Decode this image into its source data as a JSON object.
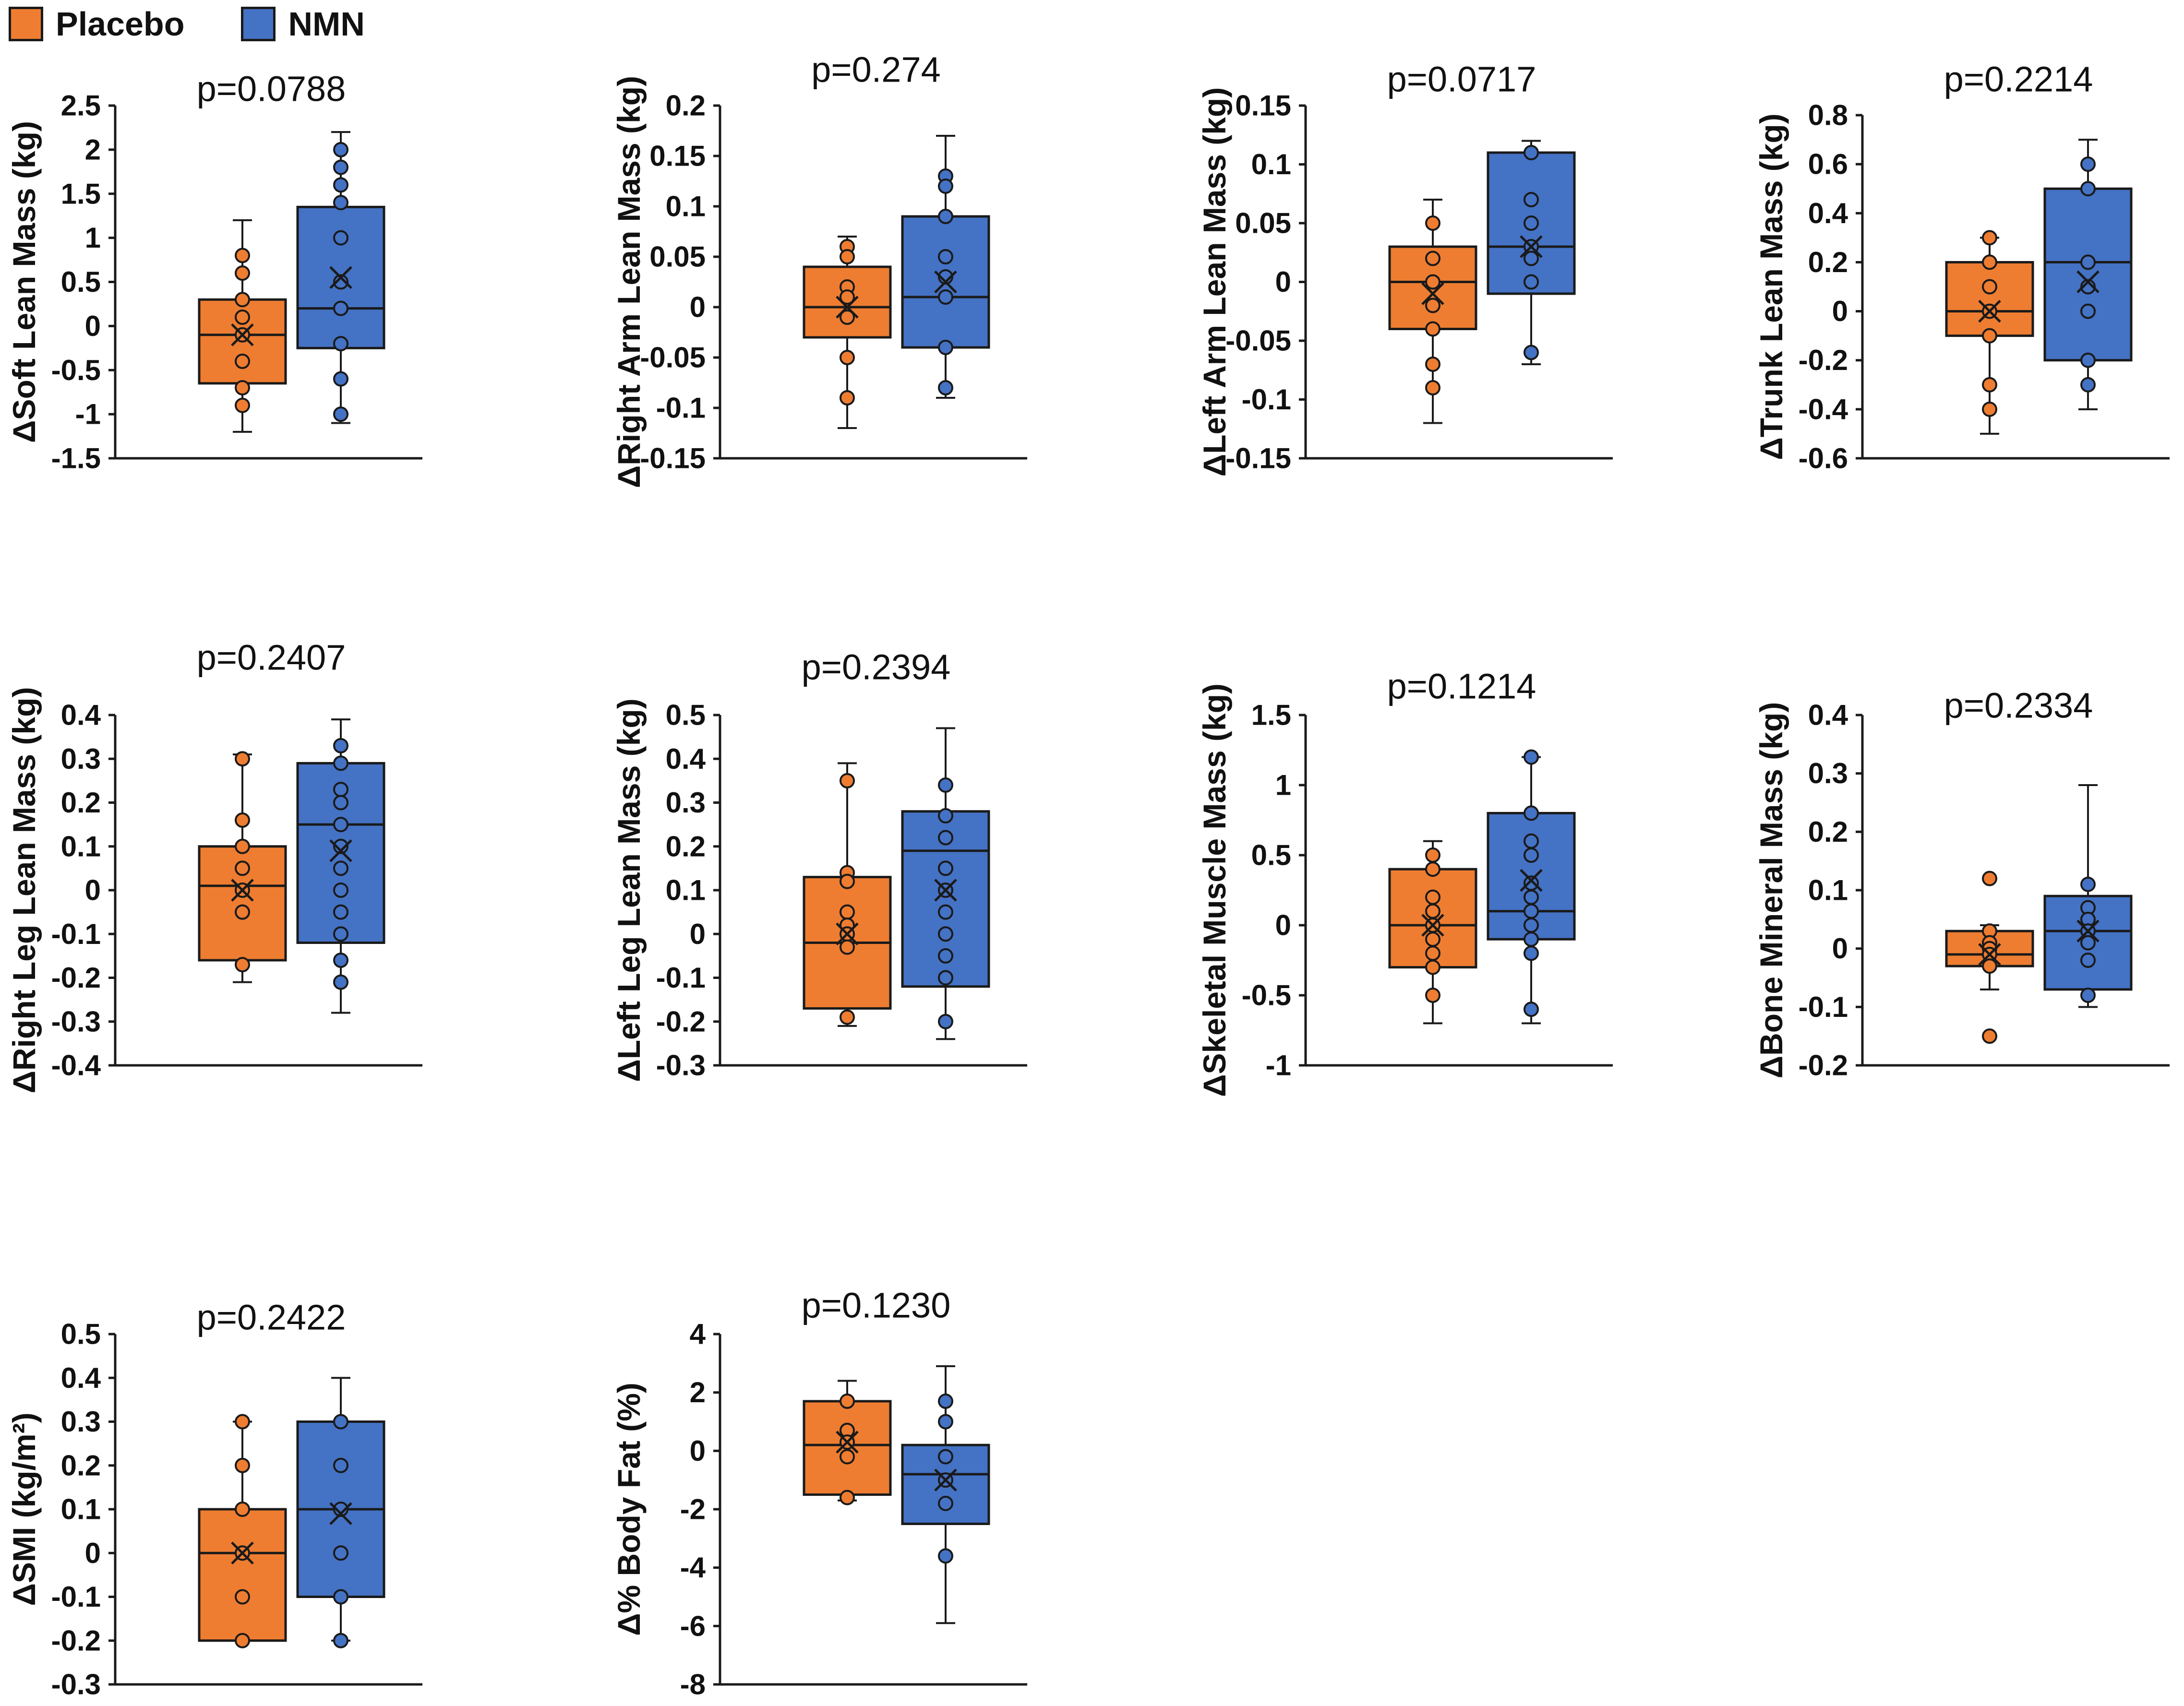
{
  "legend": {
    "items": [
      {
        "label": "Placebo",
        "color": "#ee7d31"
      },
      {
        "label": "NMN",
        "color": "#4472c4"
      }
    ]
  },
  "chart_data": [
    {
      "type": "box",
      "ylabel": "ΔSoft Lean Mass (kg)",
      "pvalue": "p=0.0788",
      "ylim": [
        -1.5,
        2.5
      ],
      "ticks": [
        -1.5,
        -1,
        -0.5,
        0,
        0.5,
        1,
        1.5,
        2,
        2.5
      ],
      "tick_labels": [
        "-1.5",
        "-1",
        "-0.5",
        "0",
        "0.5",
        "1",
        "1.5",
        "2",
        "2.5"
      ],
      "groups": [
        {
          "name": "Placebo",
          "whisker_low": -1.2,
          "q1": -0.65,
          "median": -0.1,
          "q3": 0.3,
          "whisker_high": 1.2,
          "mean": -0.1,
          "points": [
            0.8,
            0.6,
            0.3,
            0.1,
            -0.1,
            -0.4,
            -0.7,
            -0.9
          ]
        },
        {
          "name": "NMN",
          "whisker_low": -1.1,
          "q1": -0.25,
          "median": 0.2,
          "q3": 1.35,
          "whisker_high": 2.2,
          "mean": 0.55,
          "points": [
            2.0,
            1.8,
            1.6,
            1.4,
            1.0,
            0.5,
            0.2,
            -0.2,
            -0.6,
            -1.0
          ]
        }
      ]
    },
    {
      "type": "box",
      "ylabel": "ΔRight Arm Lean Mass (kg)",
      "pvalue": "p=0.274",
      "ylim": [
        -0.15,
        0.2
      ],
      "ticks": [
        -0.15,
        -0.1,
        -0.05,
        0,
        0.05,
        0.1,
        0.15,
        0.2
      ],
      "tick_labels": [
        "-0.15",
        "-0.1",
        "-0.05",
        "0",
        "0.05",
        "0.1",
        "0.15",
        "0.2"
      ],
      "groups": [
        {
          "name": "Placebo",
          "whisker_low": -0.12,
          "q1": -0.03,
          "median": 0.0,
          "q3": 0.04,
          "whisker_high": 0.07,
          "mean": 0.0,
          "points": [
            0.06,
            0.05,
            0.02,
            0.01,
            -0.01,
            -0.05,
            -0.09
          ]
        },
        {
          "name": "NMN",
          "whisker_low": -0.09,
          "q1": -0.04,
          "median": 0.01,
          "q3": 0.09,
          "whisker_high": 0.17,
          "mean": 0.025,
          "points": [
            0.13,
            0.12,
            0.09,
            0.05,
            0.03,
            0.01,
            -0.04,
            -0.08
          ]
        }
      ]
    },
    {
      "type": "box",
      "ylabel": "ΔLeft Arm Lean Mass (kg)",
      "pvalue": "p=0.0717",
      "ylim": [
        -0.15,
        0.15
      ],
      "ticks": [
        -0.15,
        -0.1,
        -0.05,
        0,
        0.05,
        0.1,
        0.15
      ],
      "tick_labels": [
        "-0.15",
        "-0.1",
        "-0.05",
        "0",
        "0.05",
        "0.1",
        "0.15"
      ],
      "groups": [
        {
          "name": "Placebo",
          "whisker_low": -0.12,
          "q1": -0.04,
          "median": 0.0,
          "q3": 0.03,
          "whisker_high": 0.07,
          "mean": -0.01,
          "points": [
            0.05,
            0.02,
            0.0,
            -0.02,
            -0.04,
            -0.07,
            -0.09
          ]
        },
        {
          "name": "NMN",
          "whisker_low": -0.07,
          "q1": -0.01,
          "median": 0.03,
          "q3": 0.11,
          "whisker_high": 0.12,
          "mean": 0.03,
          "points": [
            0.11,
            0.07,
            0.05,
            0.03,
            0.02,
            0.0,
            -0.06
          ]
        }
      ]
    },
    {
      "type": "box",
      "ylabel": "ΔTrunk Lean Mass (kg)",
      "pvalue": "p=0.2214",
      "ylim": [
        -0.6,
        0.8
      ],
      "ticks": [
        -0.6,
        -0.4,
        -0.2,
        0,
        0.2,
        0.4,
        0.6,
        0.8
      ],
      "tick_labels": [
        "-0.6",
        "-0.4",
        "-0.2",
        "0",
        "0.2",
        "0.4",
        "0.6",
        "0.8"
      ],
      "groups": [
        {
          "name": "Placebo",
          "whisker_low": -0.5,
          "q1": -0.1,
          "median": 0.0,
          "q3": 0.2,
          "whisker_high": 0.3,
          "mean": 0.0,
          "points": [
            0.3,
            0.2,
            0.1,
            0.0,
            -0.1,
            -0.3,
            -0.4
          ]
        },
        {
          "name": "NMN",
          "whisker_low": -0.4,
          "q1": -0.2,
          "median": 0.2,
          "q3": 0.5,
          "whisker_high": 0.7,
          "mean": 0.12,
          "points": [
            0.6,
            0.5,
            0.2,
            0.1,
            0.0,
            -0.2,
            -0.3
          ]
        }
      ]
    },
    {
      "type": "box",
      "ylabel": "ΔRight Leg Lean Mass (kg)",
      "pvalue": "p=0.2407",
      "ylim": [
        -0.4,
        0.4
      ],
      "ticks": [
        -0.4,
        -0.3,
        -0.2,
        -0.1,
        0,
        0.1,
        0.2,
        0.3,
        0.4
      ],
      "tick_labels": [
        "-0.4",
        "-0.3",
        "-0.2",
        "-0.1",
        "0",
        "0.1",
        "0.2",
        "0.3",
        "0.4"
      ],
      "groups": [
        {
          "name": "Placebo",
          "whisker_low": -0.21,
          "q1": -0.16,
          "median": 0.01,
          "q3": 0.1,
          "whisker_high": 0.31,
          "mean": 0.0,
          "points": [
            0.3,
            0.16,
            0.1,
            0.05,
            0.0,
            -0.05,
            -0.17
          ]
        },
        {
          "name": "NMN",
          "whisker_low": -0.28,
          "q1": -0.12,
          "median": 0.15,
          "q3": 0.29,
          "whisker_high": 0.39,
          "mean": 0.09,
          "points": [
            0.33,
            0.29,
            0.23,
            0.2,
            0.15,
            0.1,
            0.05,
            0.0,
            -0.05,
            -0.1,
            -0.16,
            -0.21
          ]
        }
      ]
    },
    {
      "type": "box",
      "ylabel": "ΔLeft Leg Lean Mass (kg)",
      "pvalue": "p=0.2394",
      "ylim": [
        -0.3,
        0.5
      ],
      "ticks": [
        -0.3,
        -0.2,
        -0.1,
        0,
        0.1,
        0.2,
        0.3,
        0.4,
        0.5
      ],
      "tick_labels": [
        "-0.3",
        "-0.2",
        "-0.1",
        "0",
        "0.1",
        "0.2",
        "0.3",
        "0.4",
        "0.5"
      ],
      "groups": [
        {
          "name": "Placebo",
          "whisker_low": -0.21,
          "q1": -0.17,
          "median": -0.02,
          "q3": 0.13,
          "whisker_high": 0.39,
          "mean": 0.0,
          "points": [
            0.35,
            0.14,
            0.12,
            0.05,
            0.02,
            0.0,
            -0.03,
            -0.19
          ]
        },
        {
          "name": "NMN",
          "whisker_low": -0.24,
          "q1": -0.12,
          "median": 0.19,
          "q3": 0.28,
          "whisker_high": 0.47,
          "mean": 0.1,
          "points": [
            0.34,
            0.27,
            0.22,
            0.15,
            0.1,
            0.05,
            0.0,
            -0.05,
            -0.1,
            -0.2
          ]
        }
      ]
    },
    {
      "type": "box",
      "ylabel": "ΔSkeletal Muscle Mass (kg)",
      "pvalue": "p=0.1214",
      "ylim": [
        -1,
        1.5
      ],
      "ticks": [
        -1,
        -0.5,
        0,
        0.5,
        1,
        1.5
      ],
      "tick_labels": [
        "-1",
        "-0.5",
        "0",
        "0.5",
        "1",
        "1.5"
      ],
      "groups": [
        {
          "name": "Placebo",
          "whisker_low": -0.7,
          "q1": -0.3,
          "median": 0.0,
          "q3": 0.4,
          "whisker_high": 0.6,
          "mean": 0.0,
          "points": [
            0.5,
            0.4,
            0.2,
            0.1,
            0.0,
            -0.1,
            -0.2,
            -0.3,
            -0.5
          ]
        },
        {
          "name": "NMN",
          "whisker_low": -0.7,
          "q1": -0.1,
          "median": 0.1,
          "q3": 0.8,
          "whisker_high": 1.2,
          "mean": 0.32,
          "points": [
            1.2,
            0.8,
            0.6,
            0.5,
            0.3,
            0.2,
            0.1,
            0.0,
            -0.1,
            -0.2,
            -0.6
          ]
        }
      ]
    },
    {
      "type": "box",
      "ylabel": "ΔBone Mineral Mass (kg)",
      "pvalue": "p=0.2334",
      "ylim": [
        -0.2,
        0.4
      ],
      "ticks": [
        -0.2,
        -0.1,
        0,
        0.1,
        0.2,
        0.3,
        0.4
      ],
      "tick_labels": [
        "-0.2",
        "-0.1",
        "0",
        "0.1",
        "0.2",
        "0.3",
        "0.4"
      ],
      "groups": [
        {
          "name": "Placebo",
          "whisker_low": -0.07,
          "q1": -0.03,
          "median": -0.01,
          "q3": 0.03,
          "whisker_high": 0.04,
          "mean": -0.01,
          "points": [
            0.12,
            0.03,
            0.01,
            0.0,
            -0.01,
            -0.03,
            -0.15
          ]
        },
        {
          "name": "NMN",
          "whisker_low": -0.1,
          "q1": -0.07,
          "median": 0.03,
          "q3": 0.09,
          "whisker_high": 0.28,
          "mean": 0.03,
          "points": [
            0.11,
            0.07,
            0.05,
            0.03,
            0.01,
            -0.02,
            -0.08
          ]
        }
      ]
    },
    {
      "type": "box",
      "ylabel": "ΔSMI (kg/m²)",
      "pvalue": "p=0.2422",
      "ylim": [
        -0.3,
        0.5
      ],
      "ticks": [
        -0.3,
        -0.2,
        -0.1,
        0,
        0.1,
        0.2,
        0.3,
        0.4,
        0.5
      ],
      "tick_labels": [
        "-0.3",
        "-0.2",
        "-0.1",
        "0",
        "0.1",
        "0.2",
        "0.3",
        "0.4",
        "0.5"
      ],
      "groups": [
        {
          "name": "Placebo",
          "whisker_low": -0.2,
          "q1": -0.2,
          "median": 0.0,
          "q3": 0.1,
          "whisker_high": 0.3,
          "mean": 0.0,
          "points": [
            0.3,
            0.2,
            0.1,
            0.0,
            -0.1,
            -0.2
          ]
        },
        {
          "name": "NMN",
          "whisker_low": -0.2,
          "q1": -0.1,
          "median": 0.1,
          "q3": 0.3,
          "whisker_high": 0.4,
          "mean": 0.09,
          "points": [
            0.3,
            0.2,
            0.1,
            0.0,
            -0.1,
            -0.2
          ]
        }
      ]
    },
    {
      "type": "box",
      "ylabel": "Δ% Body Fat (%)",
      "pvalue": "p=0.1230",
      "ylim": [
        -8,
        4
      ],
      "ticks": [
        -8,
        -6,
        -4,
        -2,
        0,
        2,
        4
      ],
      "tick_labels": [
        "-8",
        "-6",
        "-4",
        "-2",
        "0",
        "2",
        "4"
      ],
      "groups": [
        {
          "name": "Placebo",
          "whisker_low": -1.7,
          "q1": -1.5,
          "median": 0.2,
          "q3": 1.7,
          "whisker_high": 2.4,
          "mean": 0.3,
          "points": [
            1.7,
            0.7,
            0.3,
            -0.2,
            -1.6
          ]
        },
        {
          "name": "NMN",
          "whisker_low": -5.9,
          "q1": -2.5,
          "median": -0.8,
          "q3": 0.2,
          "whisker_high": 2.9,
          "mean": -1.0,
          "points": [
            1.7,
            1.0,
            -0.2,
            -1.0,
            -1.8,
            -3.6
          ]
        }
      ]
    }
  ]
}
